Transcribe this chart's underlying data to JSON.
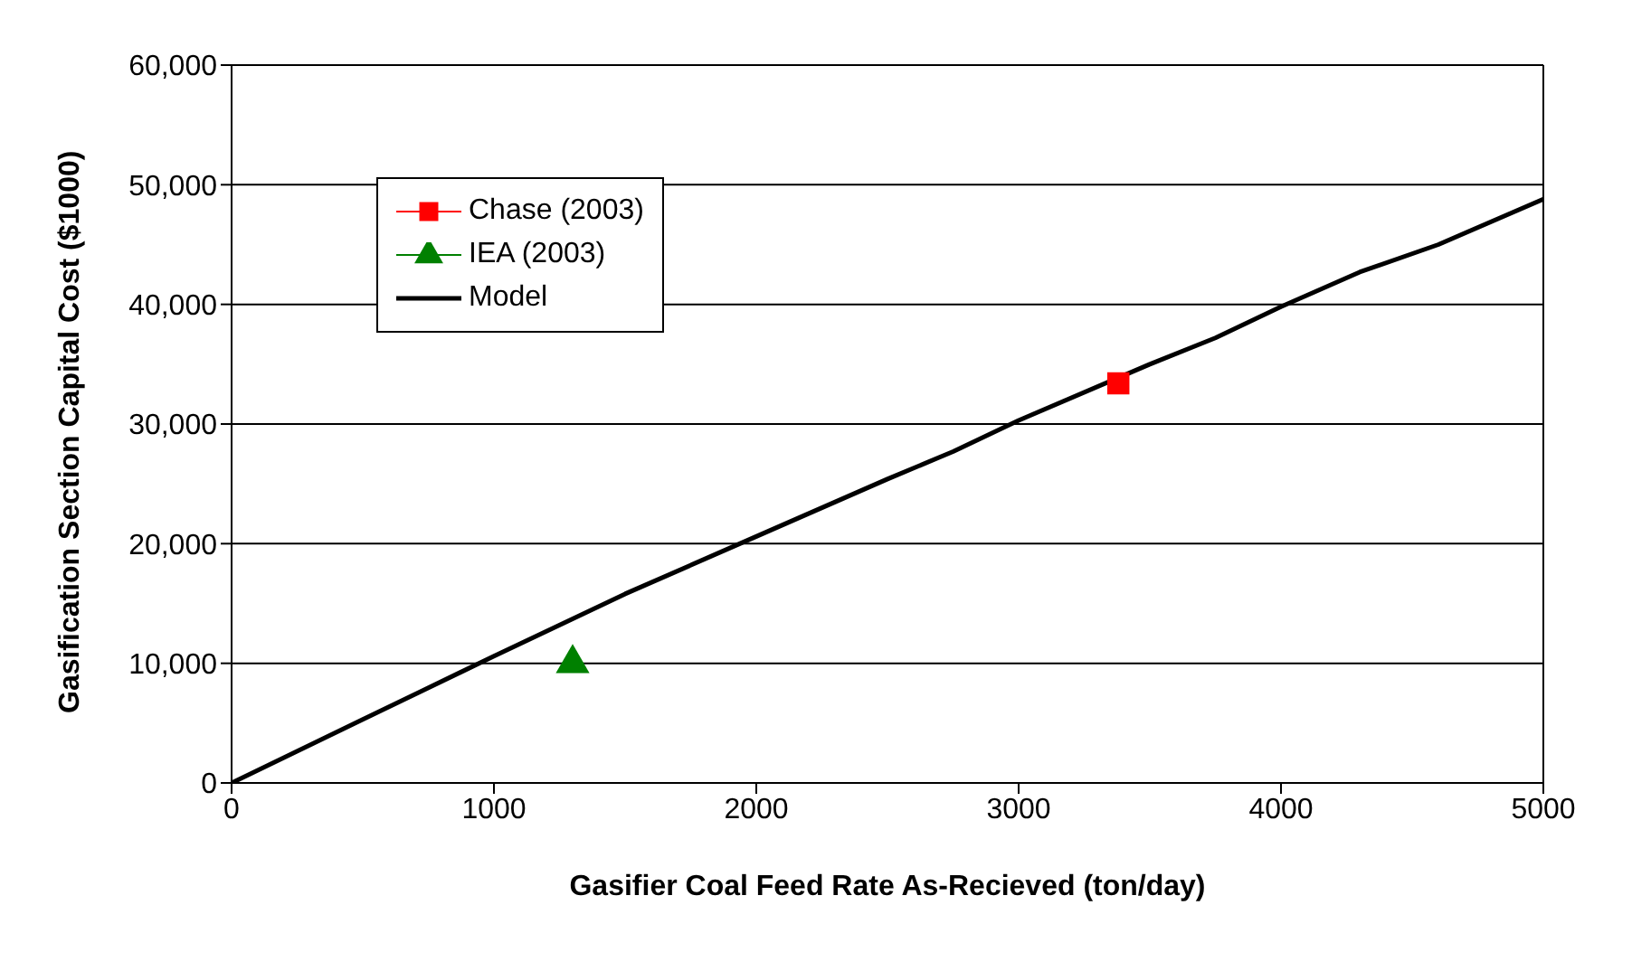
{
  "chart_data": {
    "type": "line",
    "xlabel": "Gasifier Coal Feed Rate As-Recieved (ton/day)",
    "ylabel": "Gasification Section Capital Cost ($1000)",
    "xlim": [
      0,
      5000
    ],
    "xticks": [
      0,
      1000,
      2000,
      3000,
      4000,
      5000
    ],
    "ylim": [
      0,
      60000
    ],
    "yticks": [
      {
        "value": 0,
        "label": "0"
      },
      {
        "value": 10000,
        "label": "10,000"
      },
      {
        "value": 20000,
        "label": "20,000"
      },
      {
        "value": 30000,
        "label": "30,000"
      },
      {
        "value": 40000,
        "label": "40,000"
      },
      {
        "value": 50000,
        "label": "50,000"
      },
      {
        "value": 60000,
        "label": "60,000"
      }
    ],
    "grid": "y",
    "legend": "top left",
    "series": [
      {
        "name": "Chase (2003)",
        "type": "scatter",
        "marker": "square",
        "color": "#ff0000",
        "x": [
          3380
        ],
        "values": [
          33400
        ]
      },
      {
        "name": "IEA (2003)",
        "type": "scatter",
        "marker": "triangle",
        "color": "#008000",
        "x": [
          1300
        ],
        "values": [
          10000
        ]
      },
      {
        "name": "Model",
        "marker": "none",
        "color": "#000000",
        "x": [
          0,
          500,
          1000,
          1500,
          2000,
          2500,
          2750,
          3000,
          3500,
          3750,
          4000,
          4300,
          4600,
          5000
        ],
        "values": [
          0,
          5300,
          10600,
          15800,
          20600,
          25400,
          27700,
          30300,
          35000,
          37200,
          39800,
          42700,
          45000,
          48800
        ]
      }
    ]
  }
}
